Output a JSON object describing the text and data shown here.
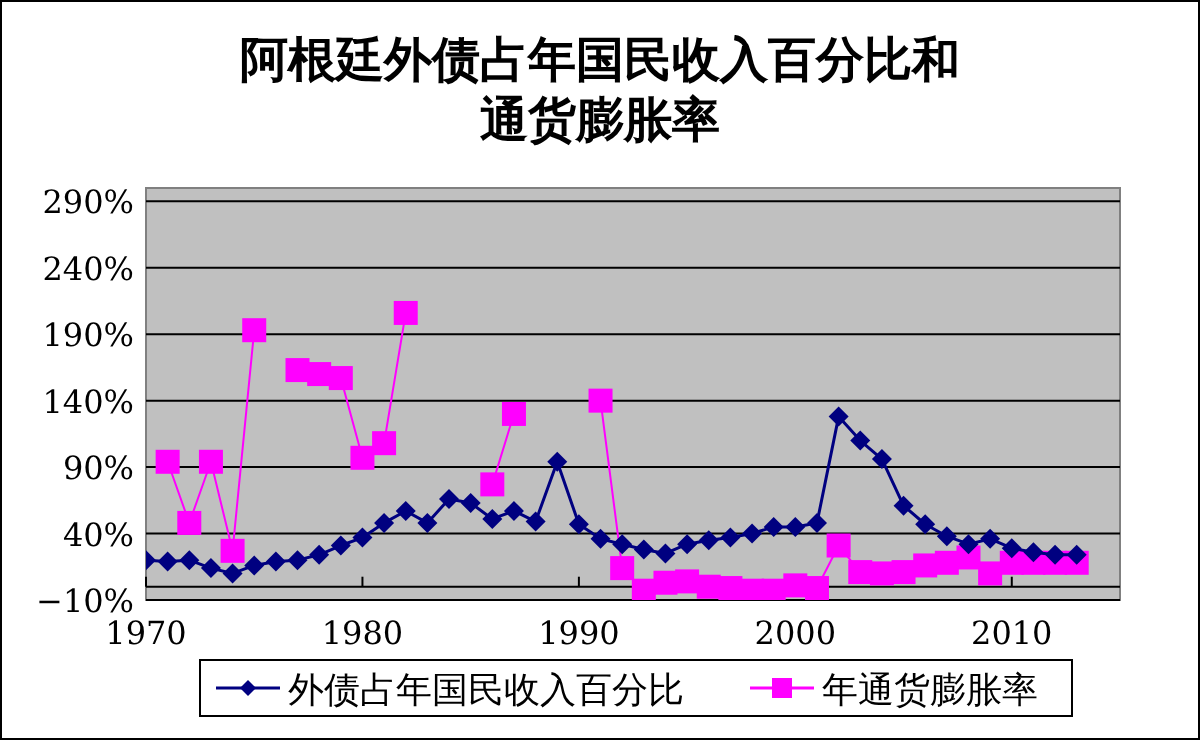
{
  "chart_data": {
    "type": "line",
    "title": "阿根廷外债占年国民收入百分比和通货膨胀率",
    "x": [
      1970,
      1971,
      1972,
      1973,
      1974,
      1975,
      1976,
      1977,
      1978,
      1979,
      1980,
      1981,
      1982,
      1983,
      1984,
      1985,
      1986,
      1987,
      1988,
      1989,
      1990,
      1991,
      1992,
      1993,
      1994,
      1995,
      1996,
      1997,
      1998,
      1999,
      2000,
      2001,
      2002,
      2003,
      2004,
      2005,
      2006,
      2007,
      2008,
      2009,
      2010,
      2011,
      2012,
      2013
    ],
    "series": [
      {
        "name": "外债占年国民收入百分比",
        "color": "#000080",
        "marker": "diamond",
        "values": [
          20,
          19,
          20,
          14,
          10,
          16,
          19,
          20,
          24,
          31,
          37,
          48,
          57,
          48,
          66,
          63,
          51,
          57,
          49,
          94,
          47,
          36,
          32,
          28,
          25,
          32,
          35,
          37,
          40,
          45,
          45,
          48,
          128,
          110,
          96,
          61,
          47,
          38,
          32,
          36,
          29,
          26,
          24,
          24
        ]
      },
      {
        "name": "年通货膨胀率",
        "color": "#ff00ff",
        "marker": "square",
        "values": [
          null,
          94,
          48,
          94,
          27,
          193,
          null,
          163,
          160,
          157,
          97,
          108,
          206,
          null,
          null,
          null,
          77,
          130,
          null,
          null,
          null,
          140,
          14,
          -3,
          3,
          4,
          0,
          -1,
          -3,
          -3,
          1,
          -1,
          31,
          11,
          10,
          11,
          16,
          18,
          22,
          10,
          18,
          18,
          18,
          18
        ]
      }
    ],
    "xlim": [
      1970,
      2015
    ],
    "xticks": [
      1970,
      1980,
      1990,
      2000,
      2010
    ],
    "ylim": [
      -10,
      300
    ],
    "yticks": [
      {
        "value": -10,
        "label": "−10%"
      },
      {
        "value": 40,
        "label": "40%"
      },
      {
        "value": 90,
        "label": "90%"
      },
      {
        "value": 140,
        "label": "140%"
      },
      {
        "value": 190,
        "label": "190%"
      },
      {
        "value": 240,
        "label": "240%"
      },
      {
        "value": 290,
        "label": "290%"
      }
    ],
    "grid": "y",
    "legend": "bottom"
  }
}
